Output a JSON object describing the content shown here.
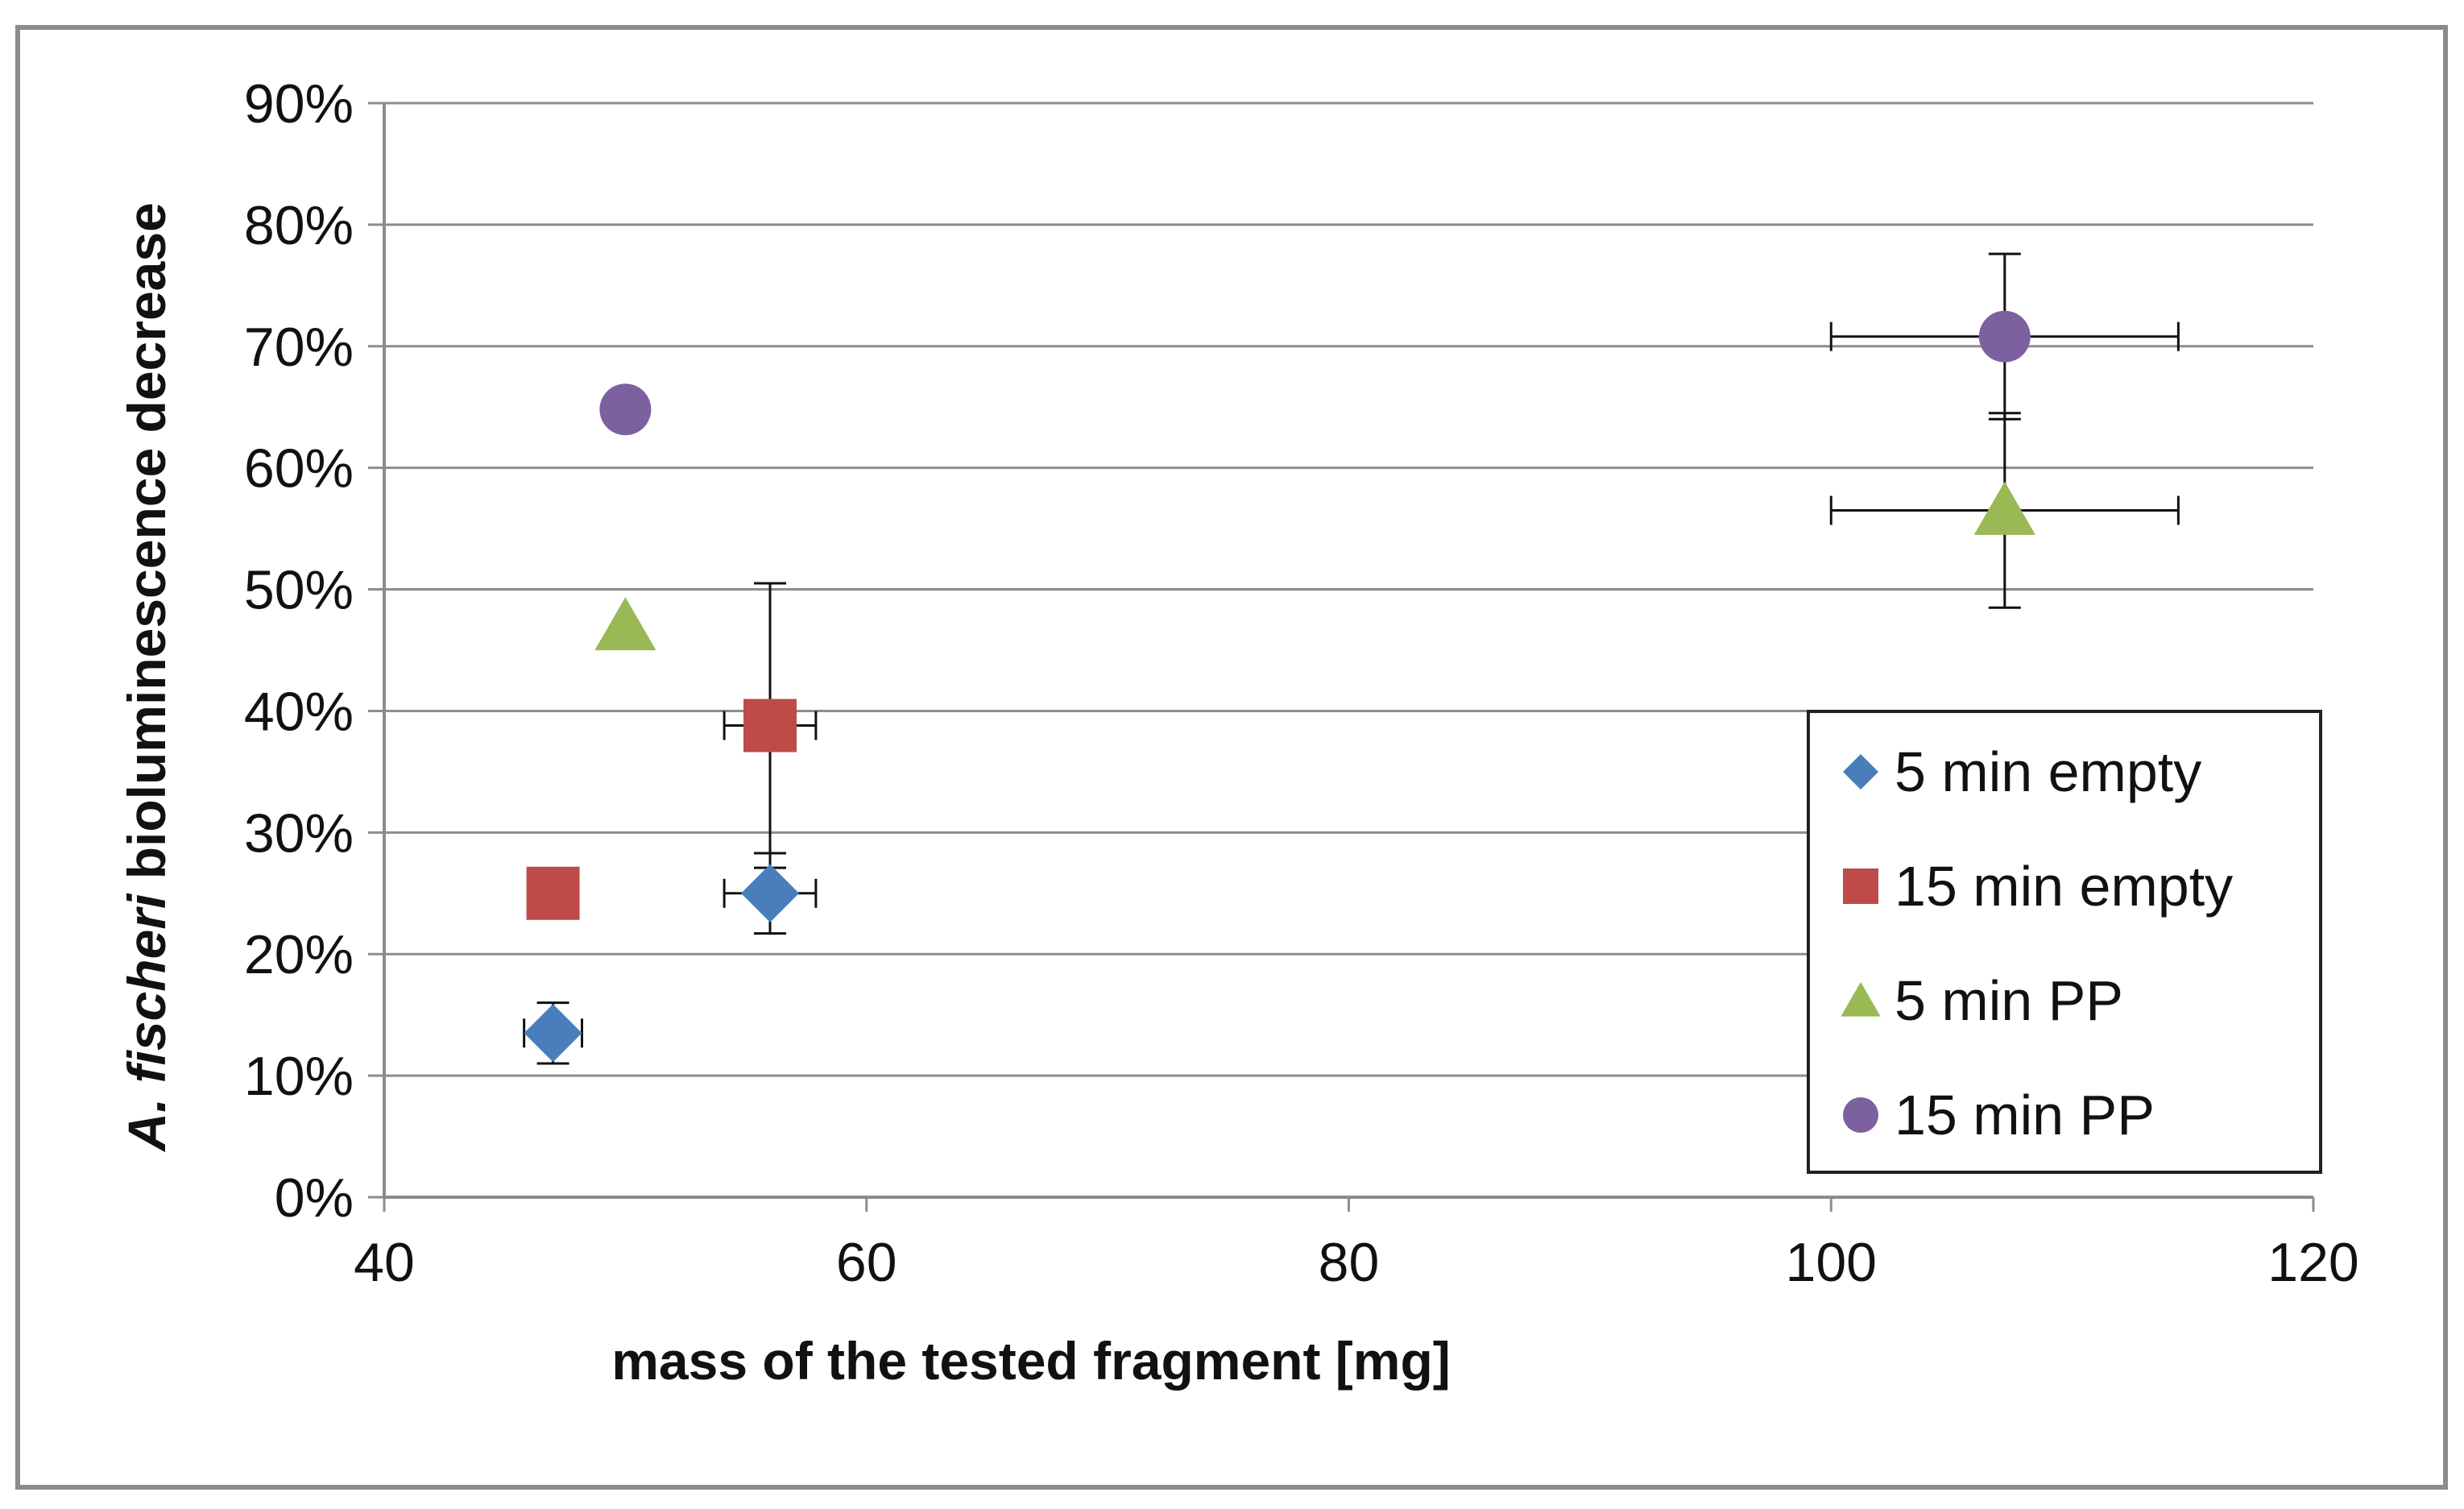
{
  "chart_data": {
    "type": "scatter",
    "title": "",
    "xlabel": "mass of the tested fragment [mg]",
    "ylabel_italic": "A. fischeri",
    "ylabel_rest": " bioluminescence decrease",
    "xlim": [
      40,
      120
    ],
    "ylim": [
      0,
      90
    ],
    "x_ticks": [
      40,
      60,
      80,
      100,
      120
    ],
    "x_tick_labels": [
      "40",
      "60",
      "80",
      "100",
      "120"
    ],
    "y_ticks": [
      0,
      10,
      20,
      30,
      40,
      50,
      60,
      70,
      80,
      90
    ],
    "y_tick_labels": [
      "0%",
      "10%",
      "20%",
      "30%",
      "40%",
      "50%",
      "60%",
      "70%",
      "80%",
      "90%"
    ],
    "grid": true,
    "legend_position": "right",
    "series": [
      {
        "name": "5 min empty",
        "marker": "diamond",
        "color": "#4a7ebb",
        "points": [
          {
            "x": 47,
            "y": 13.5,
            "xerr": 1.2,
            "yerr": 2.5
          },
          {
            "x": 56,
            "y": 25,
            "xerr": 1.9,
            "yerr": 3.3
          }
        ]
      },
      {
        "name": "15 min empty",
        "marker": "square",
        "color": "#be4b48",
        "points": [
          {
            "x": 47,
            "y": 25,
            "xerr": 1.0,
            "yerr": 1.8
          },
          {
            "x": 56,
            "y": 38.8,
            "xerr": 1.9,
            "yerr": 11.7
          }
        ]
      },
      {
        "name": "5 min PP",
        "marker": "triangle",
        "color": "#98b954",
        "points": [
          {
            "x": 50,
            "y": 47,
            "xerr": 0,
            "yerr": 0
          },
          {
            "x": 107.2,
            "y": 56.5,
            "xerr": 7.2,
            "yerr": 8
          }
        ]
      },
      {
        "name": "15 min PP",
        "marker": "circle",
        "color": "#7d60a0",
        "points": [
          {
            "x": 50,
            "y": 64.8,
            "xerr": 0,
            "yerr": 0
          },
          {
            "x": 107.2,
            "y": 70.8,
            "xerr": 7.2,
            "yerr": 6.8
          }
        ]
      }
    ]
  }
}
